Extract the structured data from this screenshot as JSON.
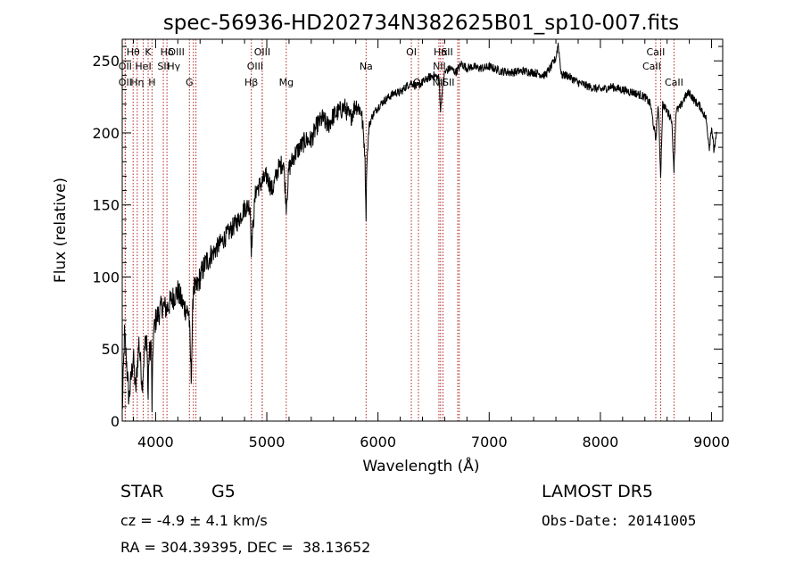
{
  "chart_data": {
    "type": "line",
    "title": "spec-56936-HD202734N382625B01_sp10-007.fits",
    "xlabel": "Wavelength (Å)",
    "ylabel": "Flux (relative)",
    "xlim": [
      3700,
      9100
    ],
    "ylim": [
      0,
      265
    ],
    "grid": false,
    "x_ticks": [
      4000,
      5000,
      6000,
      7000,
      8000,
      9000
    ],
    "y_ticks": [
      0,
      50,
      100,
      150,
      200,
      250
    ],
    "x_tick_labels": [
      "4000",
      "5000",
      "6000",
      "7000",
      "8000",
      "9000"
    ],
    "y_tick_labels": [
      "0",
      "50",
      "100",
      "150",
      "200",
      "250"
    ],
    "series": [
      {
        "x": [
          3700,
          3720,
          3740,
          3760,
          3780,
          3800,
          3820,
          3850,
          3880,
          3900,
          3920,
          3933,
          3940,
          3960,
          3968,
          3980,
          4000,
          4030,
          4060,
          4100,
          4150,
          4200,
          4250,
          4300,
          4320,
          4340,
          4360,
          4400,
          4450,
          4500,
          4550,
          4600,
          4650,
          4700,
          4750,
          4800,
          4850,
          4861,
          4900,
          4950,
          5000,
          5050,
          5100,
          5150,
          5175,
          5200,
          5250,
          5300,
          5350,
          5400,
          5450,
          5500,
          5550,
          5600,
          5650,
          5700,
          5750,
          5800,
          5850,
          5880,
          5893,
          5900,
          5920,
          5950,
          6000,
          6050,
          6100,
          6150,
          6200,
          6250,
          6300,
          6350,
          6400,
          6450,
          6500,
          6550,
          6563,
          6580,
          6600,
          6650,
          6700,
          6750,
          6800,
          6850,
          6900,
          6950,
          7000,
          7100,
          7200,
          7300,
          7400,
          7500,
          7550,
          7600,
          7620,
          7650,
          7700,
          7800,
          7900,
          8000,
          8100,
          8200,
          8300,
          8400,
          8450,
          8498,
          8520,
          8542,
          8560,
          8600,
          8640,
          8662,
          8680,
          8720,
          8760,
          8800,
          8850,
          8900,
          8950,
          8980,
          9000,
          9020,
          9050
        ],
        "values": [
          5,
          60,
          40,
          15,
          30,
          45,
          20,
          55,
          25,
          50,
          60,
          15,
          45,
          55,
          10,
          60,
          70,
          75,
          80,
          78,
          85,
          90,
          80,
          75,
          30,
          95,
          90,
          100,
          110,
          115,
          120,
          125,
          130,
          135,
          140,
          148,
          150,
          120,
          160,
          165,
          170,
          160,
          175,
          180,
          150,
          175,
          185,
          190,
          195,
          195,
          205,
          210,
          205,
          212,
          215,
          218,
          210,
          220,
          215,
          190,
          145,
          180,
          205,
          212,
          218,
          222,
          225,
          228,
          228,
          232,
          235,
          232,
          235,
          238,
          240,
          238,
          215,
          232,
          242,
          245,
          242,
          248,
          245,
          246,
          245,
          245,
          246,
          243,
          242,
          243,
          242,
          240,
          245,
          252,
          262,
          240,
          240,
          235,
          232,
          230,
          232,
          230,
          228,
          225,
          220,
          195,
          220,
          170,
          220,
          215,
          210,
          175,
          215,
          218,
          225,
          228,
          222,
          218,
          210,
          190,
          205,
          188,
          200
        ]
      }
    ],
    "lines": [
      {
        "name": "Hθ",
        "w": 3798,
        "row": 1,
        "dx": 0
      },
      {
        "name": "OII",
        "w": 3727,
        "row": 2,
        "dx": 0
      },
      {
        "name": "OII",
        "w": 3727,
        "row": 3,
        "dx": 0
      },
      {
        "name": "K",
        "w": 3933,
        "row": 1,
        "dx": 0
      },
      {
        "name": "HeI",
        "w": 3889,
        "row": 2,
        "dx": 0
      },
      {
        "name": "Hη",
        "w": 3835,
        "row": 3,
        "dx": 0
      },
      {
        "name": "H",
        "w": 3968,
        "row": 3,
        "dx": 0
      },
      {
        "name": "Hδ",
        "w": 4102,
        "row": 1,
        "dx": 0
      },
      {
        "name": "SII",
        "w": 4070,
        "row": 2,
        "dx": 0
      },
      {
        "name": "OIII",
        "w": 4363,
        "row": 1,
        "dx": -22
      },
      {
        "name": "Hγ",
        "w": 4340,
        "row": 2,
        "dx": -22
      },
      {
        "name": "G",
        "w": 4304,
        "row": 3,
        "dx": 0
      },
      {
        "name": "OIII",
        "w": 4959,
        "row": 1,
        "dx": 0
      },
      {
        "name": "OIII",
        "w": 4959,
        "row": 2,
        "dx": -8
      },
      {
        "name": "Hβ",
        "w": 4861,
        "row": 3,
        "dx": 0
      },
      {
        "name": "Mg",
        "w": 5175,
        "row": 3,
        "dx": 0
      },
      {
        "name": "Na",
        "w": 5893,
        "row": 2,
        "dx": 0
      },
      {
        "name": "OI",
        "w": 6300,
        "row": 1,
        "dx": 0
      },
      {
        "name": "OI",
        "w": 6364,
        "row": 3,
        "dx": 0
      },
      {
        "name": "Hα",
        "w": 6563,
        "row": 1,
        "dx": 0
      },
      {
        "name": "SII",
        "w": 6717,
        "row": 1,
        "dx": -12
      },
      {
        "name": "NII",
        "w": 6584,
        "row": 2,
        "dx": -4
      },
      {
        "name": "NII",
        "w": 6548,
        "row": 3,
        "dx": 0
      },
      {
        "name": "SII",
        "w": 6731,
        "row": 3,
        "dx": -12
      },
      {
        "name": "CaII",
        "w": 8498,
        "row": 1,
        "dx": 0
      },
      {
        "name": "CaII",
        "w": 8542,
        "row": 2,
        "dx": -10
      },
      {
        "name": "CaII",
        "w": 8662,
        "row": 3,
        "dx": 0
      }
    ]
  },
  "info": {
    "class_label": "STAR",
    "subclass_label": "G5",
    "survey_label": "LAMOST DR5",
    "cz_label": "cz = -4.9 ± 4.1 km/s",
    "obs_date_label": "Obs-Date: 20141005",
    "radec_label": "RA = 304.39395, DEC =  38.13652"
  }
}
